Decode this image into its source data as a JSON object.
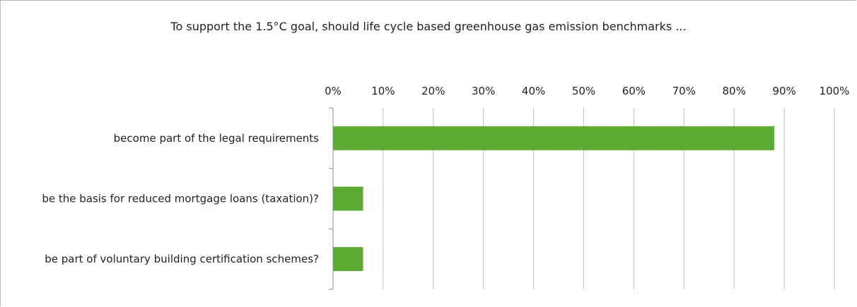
{
  "chart_data": {
    "type": "bar",
    "orientation": "horizontal",
    "title": "To support the 1.5°C goal, should life cycle based greenhouse gas emission benchmarks ...",
    "categories": [
      "become part of the legal requirements",
      "be the basis for reduced mortgage loans (taxation)?",
      "be part of voluntary building certification schemes?"
    ],
    "values": [
      88,
      6,
      6
    ],
    "unit": "%",
    "xlim": [
      0,
      100
    ],
    "x_ticks": [
      "0%",
      "10%",
      "20%",
      "30%",
      "40%",
      "50%",
      "60%",
      "70%",
      "80%",
      "90%",
      "100%"
    ],
    "x_axis_position": "top",
    "grid": true,
    "legend": "none",
    "bar_color": "#5cab32",
    "grid_color": "#bfbfbf",
    "axis_color": "#8c8c8c"
  }
}
